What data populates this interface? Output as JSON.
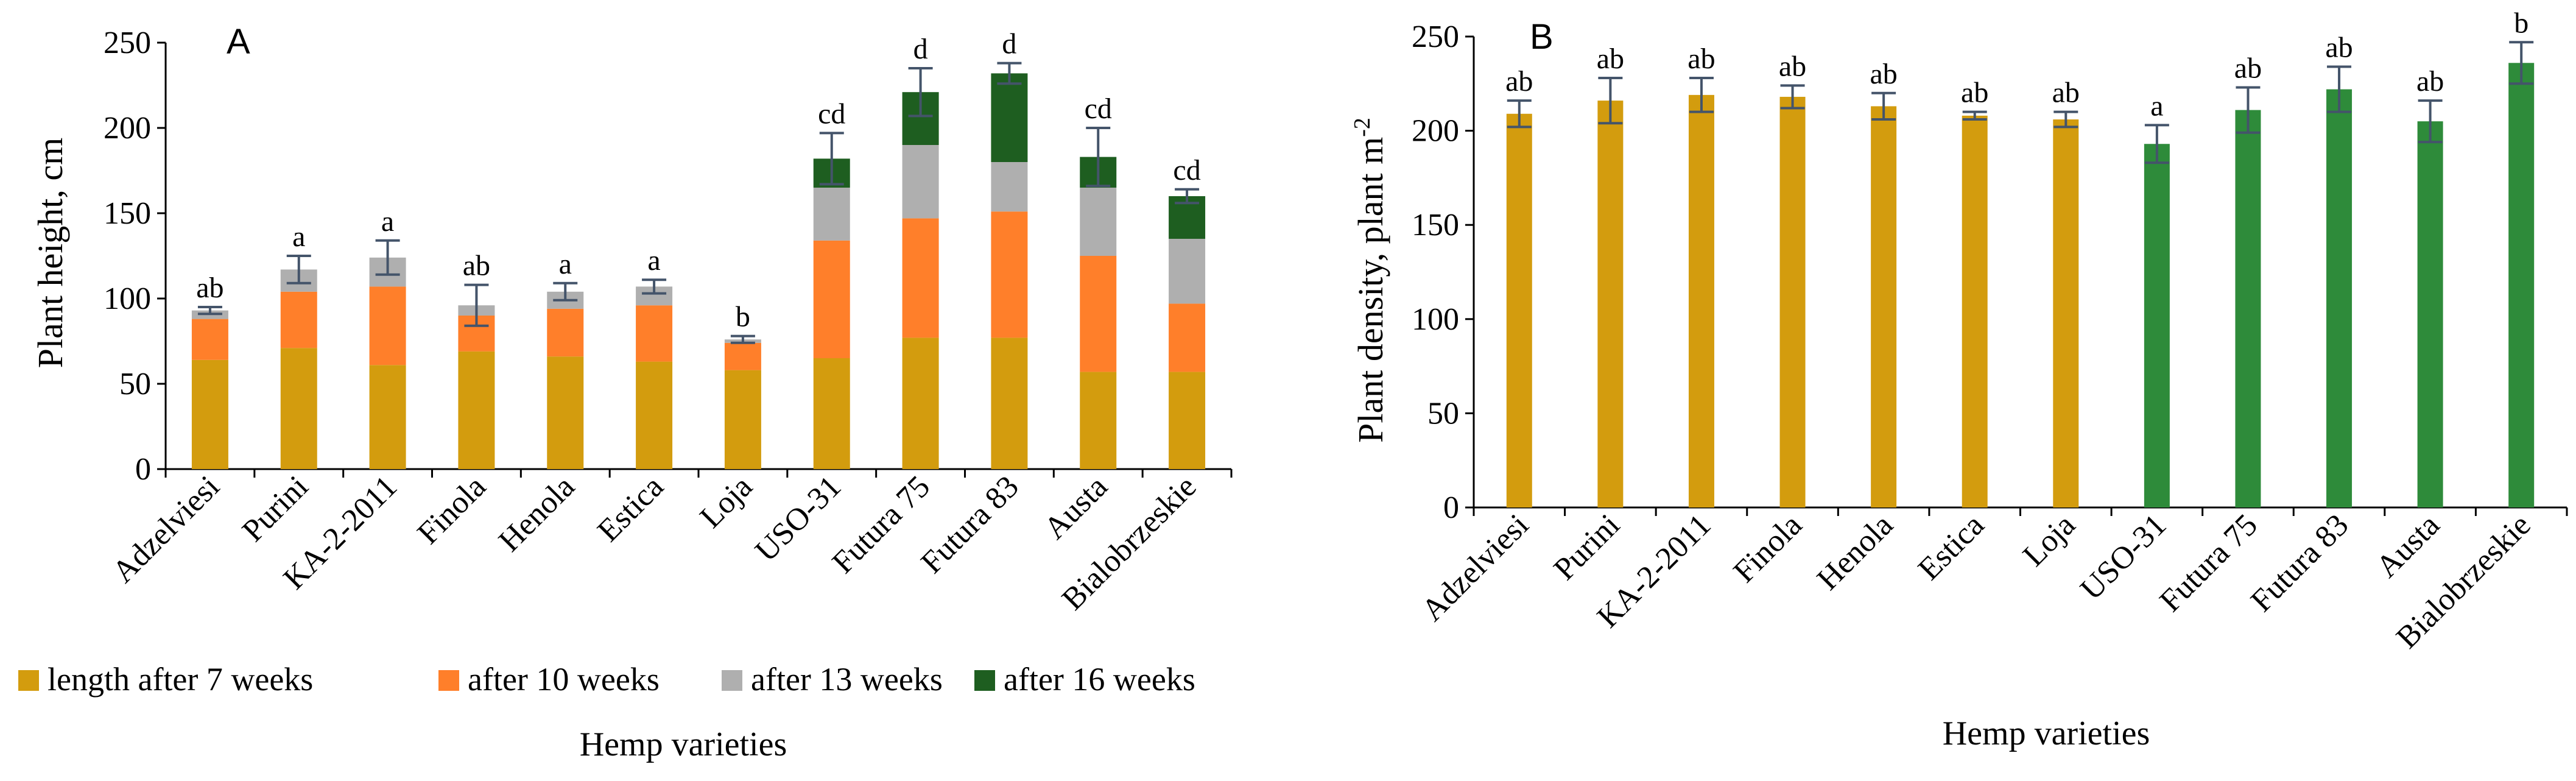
{
  "chart_data": [
    {
      "type": "bar",
      "panel_label": "A",
      "stacked": true,
      "ylabel": "Plant height, cm",
      "xlabel": "Hemp varieties",
      "ylim": [
        0,
        250
      ],
      "yticks": [
        0,
        50,
        100,
        150,
        200,
        250
      ],
      "categories": [
        "Adzelviesi",
        "Purini",
        "KA-2-2011",
        "Finola",
        "Henola",
        "Estica",
        "Loja",
        "USO-31",
        "Futura 75",
        "Futura 83",
        "Austa",
        "Bialobrzeskie"
      ],
      "series": [
        {
          "name": "length after 7 weeks",
          "values": [
            64,
            71,
            61,
            69,
            66,
            63,
            58,
            65,
            77,
            77,
            57,
            57
          ]
        },
        {
          "name": "after 10 weeks",
          "values": [
            24,
            33,
            46,
            21,
            28,
            33,
            16,
            69,
            70,
            74,
            68,
            40
          ]
        },
        {
          "name": "after 13 weeks",
          "values": [
            5,
            13,
            17,
            6,
            10,
            11,
            2,
            31,
            43,
            29,
            40,
            38
          ]
        },
        {
          "name": "after 16 weeks",
          "values": [
            0,
            0,
            0,
            0,
            0,
            0,
            0,
            17,
            31,
            52,
            18,
            25
          ]
        }
      ],
      "error": [
        2,
        8,
        10,
        12,
        5,
        4,
        2,
        15,
        14,
        6,
        17,
        4
      ],
      "letters": [
        "ab",
        "a",
        "a",
        "ab",
        "a",
        "a",
        "b",
        "cd",
        "d",
        "d",
        "cd",
        "cd"
      ],
      "legend_position": "bottom",
      "grid": false
    },
    {
      "type": "bar",
      "panel_label": "B",
      "ylabel_main": "Plant density, plant m",
      "ylabel_sup": "-2",
      "xlabel": "Hemp varieties",
      "ylim": [
        0,
        250
      ],
      "yticks": [
        0,
        50,
        100,
        150,
        200,
        250
      ],
      "categories": [
        "Adzelviesi",
        "Purini",
        "KA-2-2011",
        "Finola",
        "Henola",
        "Estica",
        "Loja",
        "USO-31",
        "Futura 75",
        "Futura 83",
        "Austa",
        "Bialobrzeskie"
      ],
      "values": [
        209,
        216,
        219,
        218,
        213,
        208,
        206,
        193,
        211,
        222,
        205,
        236
      ],
      "error": [
        7,
        12,
        9,
        6,
        7,
        2,
        4,
        10,
        12,
        12,
        11,
        11
      ],
      "letters": [
        "ab",
        "ab",
        "ab",
        "ab",
        "ab",
        "ab",
        "ab",
        "a",
        "ab",
        "ab",
        "ab",
        "b"
      ],
      "grid": false
    }
  ],
  "colors": {
    "monoecious": "#D39C0E",
    "dioecious": "#2E8B3A",
    "stack": [
      "#D39C0E",
      "#FF7F2A",
      "#AFAFAF",
      "#1E5E20"
    ],
    "error_bar": "#44546A"
  }
}
